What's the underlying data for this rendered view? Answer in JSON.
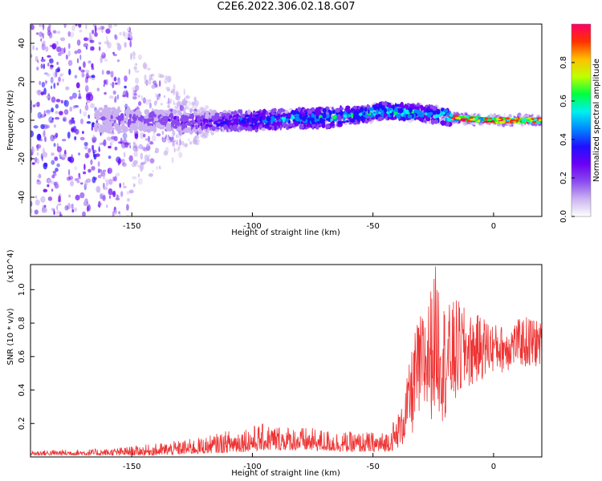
{
  "title": "C2E6.2022.306.02.18.G07",
  "chart_data": [
    {
      "type": "heatmap",
      "xlabel": "Height of straight line (km)",
      "ylabel": "Frequency (Hz)",
      "xlim": [
        -192,
        20
      ],
      "ylim": [
        -50,
        50
      ],
      "xticks": [
        -150,
        -100,
        -50,
        0
      ],
      "yticks": [
        -40,
        -20,
        0,
        20,
        40
      ],
      "colorbar": {
        "label": "Normalized spectral amplitude",
        "range": [
          0,
          1
        ],
        "ticks": [
          0.0,
          0.2,
          0.4,
          0.6,
          0.8
        ],
        "colors": [
          "#ffffff",
          "#cbb3f0",
          "#8a4af0",
          "#6a00f5",
          "#2010ff",
          "#0088ff",
          "#00f0f0",
          "#00ff40",
          "#c0ff00",
          "#ffc000",
          "#ff3000",
          "#ff0066"
        ]
      },
      "ridge": {
        "x": [
          -160,
          -140,
          -120,
          -100,
          -80,
          -60,
          -45,
          -35,
          -25,
          -15,
          0,
          20
        ],
        "frequency_hz": [
          0,
          0,
          -1,
          0,
          1,
          2,
          5,
          4,
          3,
          1,
          0,
          0
        ],
        "amplitude": [
          0.15,
          0.2,
          0.28,
          0.4,
          0.5,
          0.55,
          0.55,
          0.6,
          0.5,
          0.9,
          0.95,
          0.9
        ]
      }
    },
    {
      "type": "line",
      "xlabel": "Height of straight line (km)",
      "ylabel": "SNR (10 * v/v)",
      "y_multiplier": "(x10^4)",
      "xlim": [
        -192,
        20
      ],
      "ylim": [
        0,
        1.15
      ],
      "xticks": [
        -150,
        -100,
        -50,
        0
      ],
      "yticks": [
        0.2,
        0.4,
        0.6,
        0.8,
        1.0
      ],
      "color": "#ee3333",
      "envelope": {
        "x": [
          -192,
          -160,
          -140,
          -120,
          -105,
          -95,
          -80,
          -60,
          -45,
          -38,
          -32,
          -27,
          -24,
          -20,
          -15,
          -10,
          -5,
          0,
          5,
          10,
          15,
          20
        ],
        "low": [
          0.01,
          0.01,
          0.01,
          0.02,
          0.03,
          0.04,
          0.04,
          0.03,
          0.03,
          0.05,
          0.15,
          0.2,
          0.25,
          0.2,
          0.3,
          0.4,
          0.45,
          0.5,
          0.5,
          0.55,
          0.5,
          0.55
        ],
        "high": [
          0.04,
          0.05,
          0.08,
          0.12,
          0.18,
          0.2,
          0.18,
          0.15,
          0.15,
          0.3,
          0.8,
          0.95,
          1.15,
          0.9,
          0.95,
          0.85,
          0.85,
          0.8,
          0.78,
          0.82,
          0.85,
          0.8
        ]
      }
    }
  ]
}
